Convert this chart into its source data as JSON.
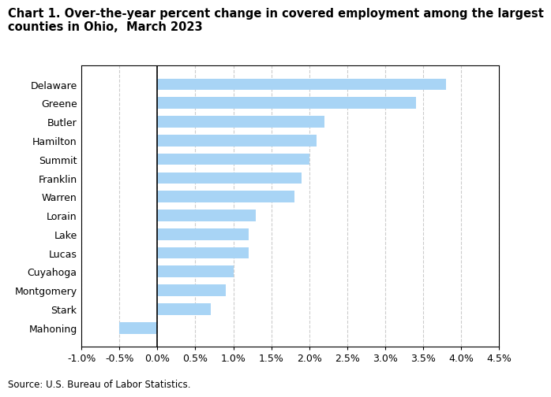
{
  "categories": [
    "Delaware",
    "Greene",
    "Butler",
    "Hamilton",
    "Summit",
    "Franklin",
    "Warren",
    "Lorain",
    "Lake",
    "Lucas",
    "Cuyahoga",
    "Montgomery",
    "Stark",
    "Mahoning"
  ],
  "values": [
    3.8,
    3.4,
    2.2,
    2.1,
    2.0,
    1.9,
    1.8,
    1.3,
    1.2,
    1.2,
    1.0,
    0.9,
    0.7,
    -0.5
  ],
  "bar_color": "#a8d4f5",
  "title_line1": "Chart 1. Over-the-year percent change in covered employment among the largest",
  "title_line2": "counties in Ohio,  March 2023",
  "xlim": [
    -1.0,
    4.5
  ],
  "xticks": [
    -1.0,
    -0.5,
    0.0,
    0.5,
    1.0,
    1.5,
    2.0,
    2.5,
    3.0,
    3.5,
    4.0,
    4.5
  ],
  "xtick_labels": [
    "-1.0%",
    "-0.5%",
    "0.0%",
    "0.5%",
    "1.0%",
    "1.5%",
    "2.0%",
    "2.5%",
    "3.0%",
    "3.5%",
    "4.0%",
    "4.5%"
  ],
  "source_text": "Source: U.S. Bureau of Labor Statistics.",
  "background_color": "#ffffff",
  "grid_color": "#cccccc",
  "title_fontsize": 10.5,
  "tick_fontsize": 9,
  "source_fontsize": 8.5,
  "bar_height": 0.62
}
